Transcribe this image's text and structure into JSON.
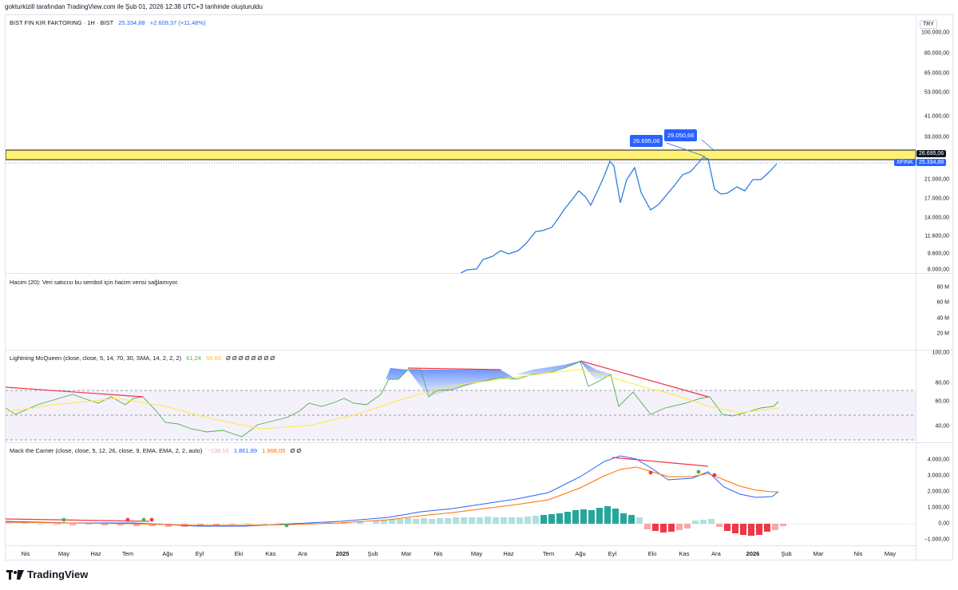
{
  "header": {
    "text": "gokturkizill tarafından TradingView.com ile Şub 01, 2026 12:38 UTC+3 tarihinde oluşturuldu"
  },
  "currency": "TRY",
  "main_legend": {
    "symbol": "BIST FIN KIR FAKTORING · 1H · BIST",
    "price": "25.334,88",
    "change": "+2.609,37 (+11,48%)"
  },
  "price_ticks": [
    "100.000,00",
    "80.000,00",
    "65.000,00",
    "53.000,00",
    "41.000,00",
    "33.000,00",
    "21.000,00",
    "17.000,00",
    "14.000,00",
    "11.600,00",
    "9.600,00",
    "8.000,00"
  ],
  "price_badges": {
    "level_value": "26.695,06",
    "current_symbol": "XFINK",
    "current_value": "25.334,88",
    "callout_1": "26.695,06",
    "callout_2": "29.050,66"
  },
  "volume": {
    "legend": "Hacim (20): Veri satıcısı bu sembol için hacim verisi sağlamıyor.",
    "ticks": [
      "80 M",
      "60 M",
      "40 M",
      "20 M"
    ]
  },
  "lightning": {
    "legend_name": "Lightning McQueen (close, close, 5, 14, 70, 30, SMA, 14, 2, 2, 2)",
    "value_1": "61,24",
    "value_2": "56,68",
    "empties": "Ø Ø Ø Ø Ø Ø Ø Ø",
    "ticks": [
      "100,00",
      "80,00",
      "60,00",
      "40,00"
    ]
  },
  "mack": {
    "legend_name": "Mack the Carrier (close, close, 5, 12, 26, close, 9, EMA, EMA, 2, 2, auto)",
    "value_hist": "−106,16",
    "value_macd": "1.861,89",
    "value_signal": "1.968,05",
    "empties": "Ø Ø",
    "ticks": [
      "4.000,00",
      "3.000,00",
      "2.000,00",
      "1.000,00",
      "0,00",
      "−1.000,00"
    ]
  },
  "time_labels": [
    {
      "label": "Nis",
      "bold": false
    },
    {
      "label": "May",
      "bold": false
    },
    {
      "label": "Haz",
      "bold": false
    },
    {
      "label": "Tem",
      "bold": false
    },
    {
      "label": "Ağu",
      "bold": false
    },
    {
      "label": "Eyl",
      "bold": false
    },
    {
      "label": "Eki",
      "bold": false
    },
    {
      "label": "Kas",
      "bold": false
    },
    {
      "label": "Ara",
      "bold": false
    },
    {
      "label": "2025",
      "bold": true
    },
    {
      "label": "Şub",
      "bold": false
    },
    {
      "label": "Mar",
      "bold": false
    },
    {
      "label": "Nis",
      "bold": false
    },
    {
      "label": "May",
      "bold": false
    },
    {
      "label": "Haz",
      "bold": false
    },
    {
      "label": "Tem",
      "bold": false
    },
    {
      "label": "Ağu",
      "bold": false
    },
    {
      "label": "Eyl",
      "bold": false
    },
    {
      "label": "Eki",
      "bold": false
    },
    {
      "label": "Kas",
      "bold": false
    },
    {
      "label": "Ara",
      "bold": false
    },
    {
      "label": "2026",
      "bold": true
    },
    {
      "label": "Şub",
      "bold": false
    },
    {
      "label": "Mar",
      "bold": false
    },
    {
      "label": "Nis",
      "bold": false
    },
    {
      "label": "May",
      "bold": false
    }
  ],
  "brand": "TradingView",
  "colors": {
    "price_line": "#2962ff",
    "highlight_band": "#fff176",
    "rsi_up": "#4caf50",
    "rsi_down": "#f23645",
    "signal": "#ff9800",
    "macd": "#2962ff",
    "hist_pos": "#26a69a",
    "hist_neg": "#f23645"
  }
}
